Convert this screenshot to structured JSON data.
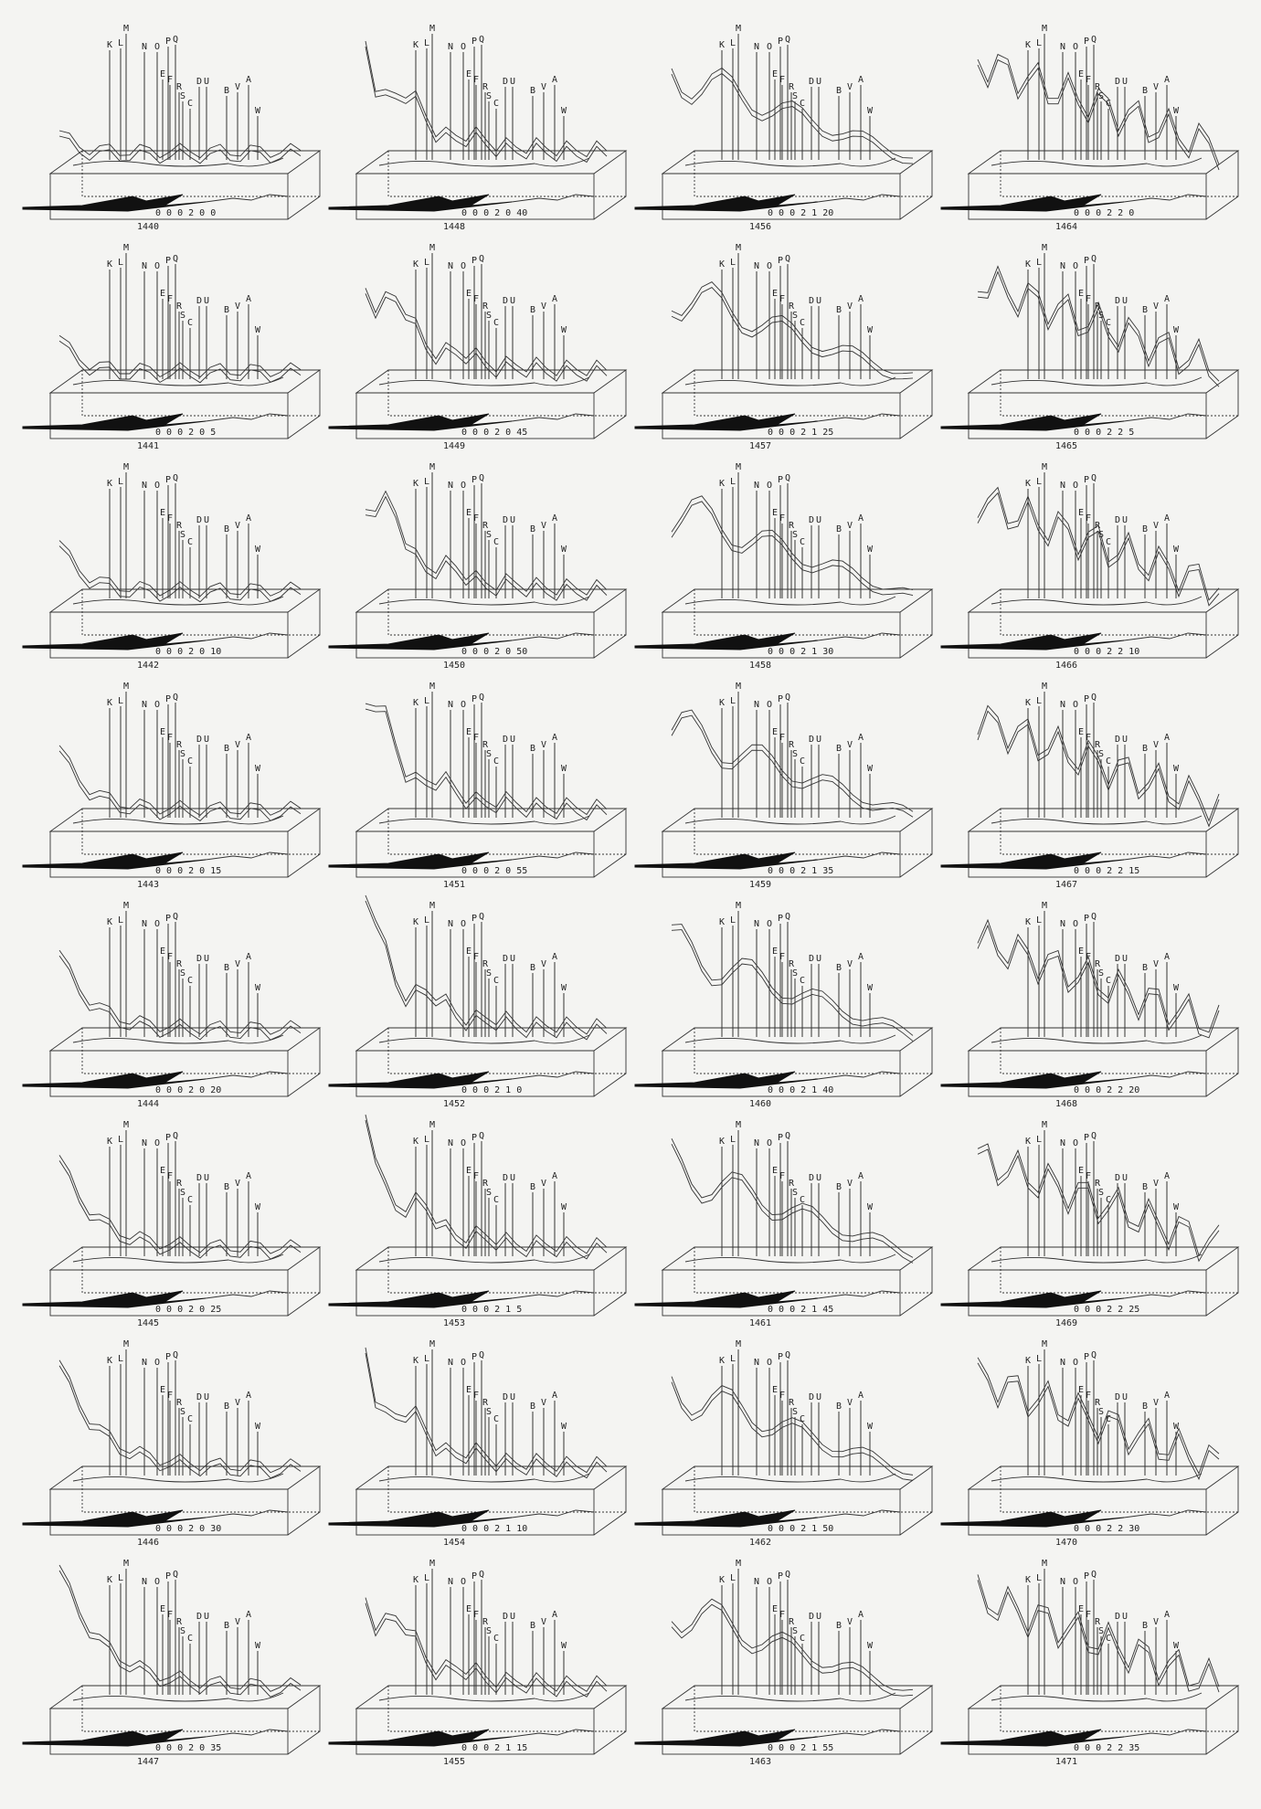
{
  "stations": [
    "K",
    "L",
    "M",
    "N",
    "O",
    "P",
    "Q",
    "E",
    "F",
    "R",
    "S",
    "D",
    "U",
    "B",
    "V",
    "A",
    "W",
    "C"
  ],
  "panels": [
    {
      "frame": "1440",
      "time": "0 0 0 2 0 0"
    },
    {
      "frame": "1441",
      "time": "0 0 0 2 0 5"
    },
    {
      "frame": "1442",
      "time": "0 0 0 2 0 10"
    },
    {
      "frame": "1443",
      "time": "0 0 0 2 0 15"
    },
    {
      "frame": "1444",
      "time": "0 0 0 2 0 20"
    },
    {
      "frame": "1445",
      "time": "0 0 0 2 0 25"
    },
    {
      "frame": "1446",
      "time": "0 0 0 2 0 30"
    },
    {
      "frame": "1447",
      "time": "0 0 0 2 0 35"
    },
    {
      "frame": "1448",
      "time": "0 0 0 2 0 40"
    },
    {
      "frame": "1449",
      "time": "0 0 0 2 0 45"
    },
    {
      "frame": "1450",
      "time": "0 0 0 2 0 50"
    },
    {
      "frame": "1451",
      "time": "0 0 0 2 0 55"
    },
    {
      "frame": "1452",
      "time": "0 0 0 2 1 0"
    },
    {
      "frame": "1453",
      "time": "0 0 0 2 1 5"
    },
    {
      "frame": "1454",
      "time": "0 0 0 2 1 10"
    },
    {
      "frame": "1455",
      "time": "0 0 0 2 1 15"
    },
    {
      "frame": "1456",
      "time": "0 0 0 2 1 20"
    },
    {
      "frame": "1457",
      "time": "0 0 0 2 1 25"
    },
    {
      "frame": "1458",
      "time": "0 0 0 2 1 30"
    },
    {
      "frame": "1459",
      "time": "0 0 0 2 1 35"
    },
    {
      "frame": "1460",
      "time": "0 0 0 2 1 40"
    },
    {
      "frame": "1461",
      "time": "0 0 0 2 1 45"
    },
    {
      "frame": "1462",
      "time": "0 0 0 2 1 50"
    },
    {
      "frame": "1463",
      "time": "0 0 0 2 1 55"
    },
    {
      "frame": "1464",
      "time": "0 0 0 2 2 0"
    },
    {
      "frame": "1465",
      "time": "0 0 0 2 2 5"
    },
    {
      "frame": "1466",
      "time": "0 0 0 2 2 10"
    },
    {
      "frame": "1467",
      "time": "0 0 0 2 2 15"
    },
    {
      "frame": "1468",
      "time": "0 0 0 2 2 20"
    },
    {
      "frame": "1469",
      "time": "0 0 0 2 2 25"
    },
    {
      "frame": "1470",
      "time": "0 0 0 2 2 30"
    },
    {
      "frame": "1471",
      "time": "0 0 0 2 2 35"
    }
  ]
}
